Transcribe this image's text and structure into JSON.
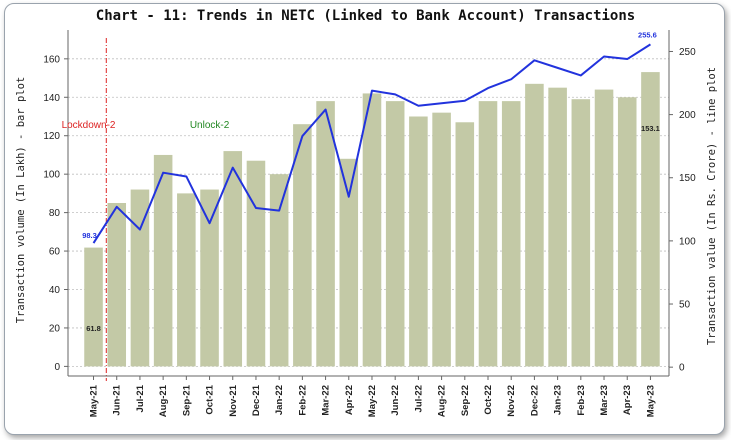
{
  "chart_data": {
    "type": "bar+line",
    "title": "Chart - 11: Trends in NETC (Linked to Bank Account) Transactions",
    "categories": [
      "May-21",
      "Jun-21",
      "Jul-21",
      "Aug-21",
      "Sep-21",
      "Oct-21",
      "Nov-21",
      "Dec-21",
      "Jan-22",
      "Feb-22",
      "Mar-22",
      "Apr-22",
      "May-22",
      "Jun-22",
      "Jul-22",
      "Aug-22",
      "Sep-22",
      "Oct-22",
      "Nov-22",
      "Dec-22",
      "Jan-23",
      "Feb-23",
      "Mar-23",
      "Apr-23",
      "May-23"
    ],
    "series": [
      {
        "type": "bar",
        "axis": "left",
        "values": [
          61.8,
          85,
          92,
          110,
          90,
          92,
          112,
          107,
          100,
          126,
          138,
          108,
          142,
          138,
          130,
          132,
          127,
          138,
          138,
          147,
          145,
          139,
          144,
          140,
          153.1
        ],
        "color": "#c3c9a6"
      },
      {
        "type": "line",
        "axis": "right",
        "values": [
          98.3,
          127,
          109,
          154,
          151,
          114,
          158,
          126,
          124,
          183,
          204,
          135,
          219,
          216,
          207,
          209,
          211,
          221,
          228,
          243,
          237,
          231,
          246,
          244,
          255.6
        ],
        "color": "#2233dd"
      }
    ],
    "ylabel": "Transaction volume (In Lakh) - bar plot",
    "ylabel_right": "Transaction value (In Rs. Crore) - line plot",
    "ylim": [
      -5,
      175
    ],
    "ylim_right": [
      -7,
      267
    ],
    "yticks": [
      0,
      20,
      40,
      60,
      80,
      100,
      120,
      140,
      160
    ],
    "yticks_right": [
      0,
      50,
      100,
      150,
      200,
      250
    ],
    "data_labels": {
      "bar_first": "61.8",
      "bar_last": "153.1",
      "line_first": "98.3",
      "line_last": "255.6"
    },
    "annotations": [
      {
        "text": "Lockdown-2",
        "color": "#dd2222"
      },
      {
        "text": "Unlock-2",
        "color": "#228822"
      }
    ],
    "vline_between": [
      "May-21",
      "Jun-21"
    ]
  }
}
